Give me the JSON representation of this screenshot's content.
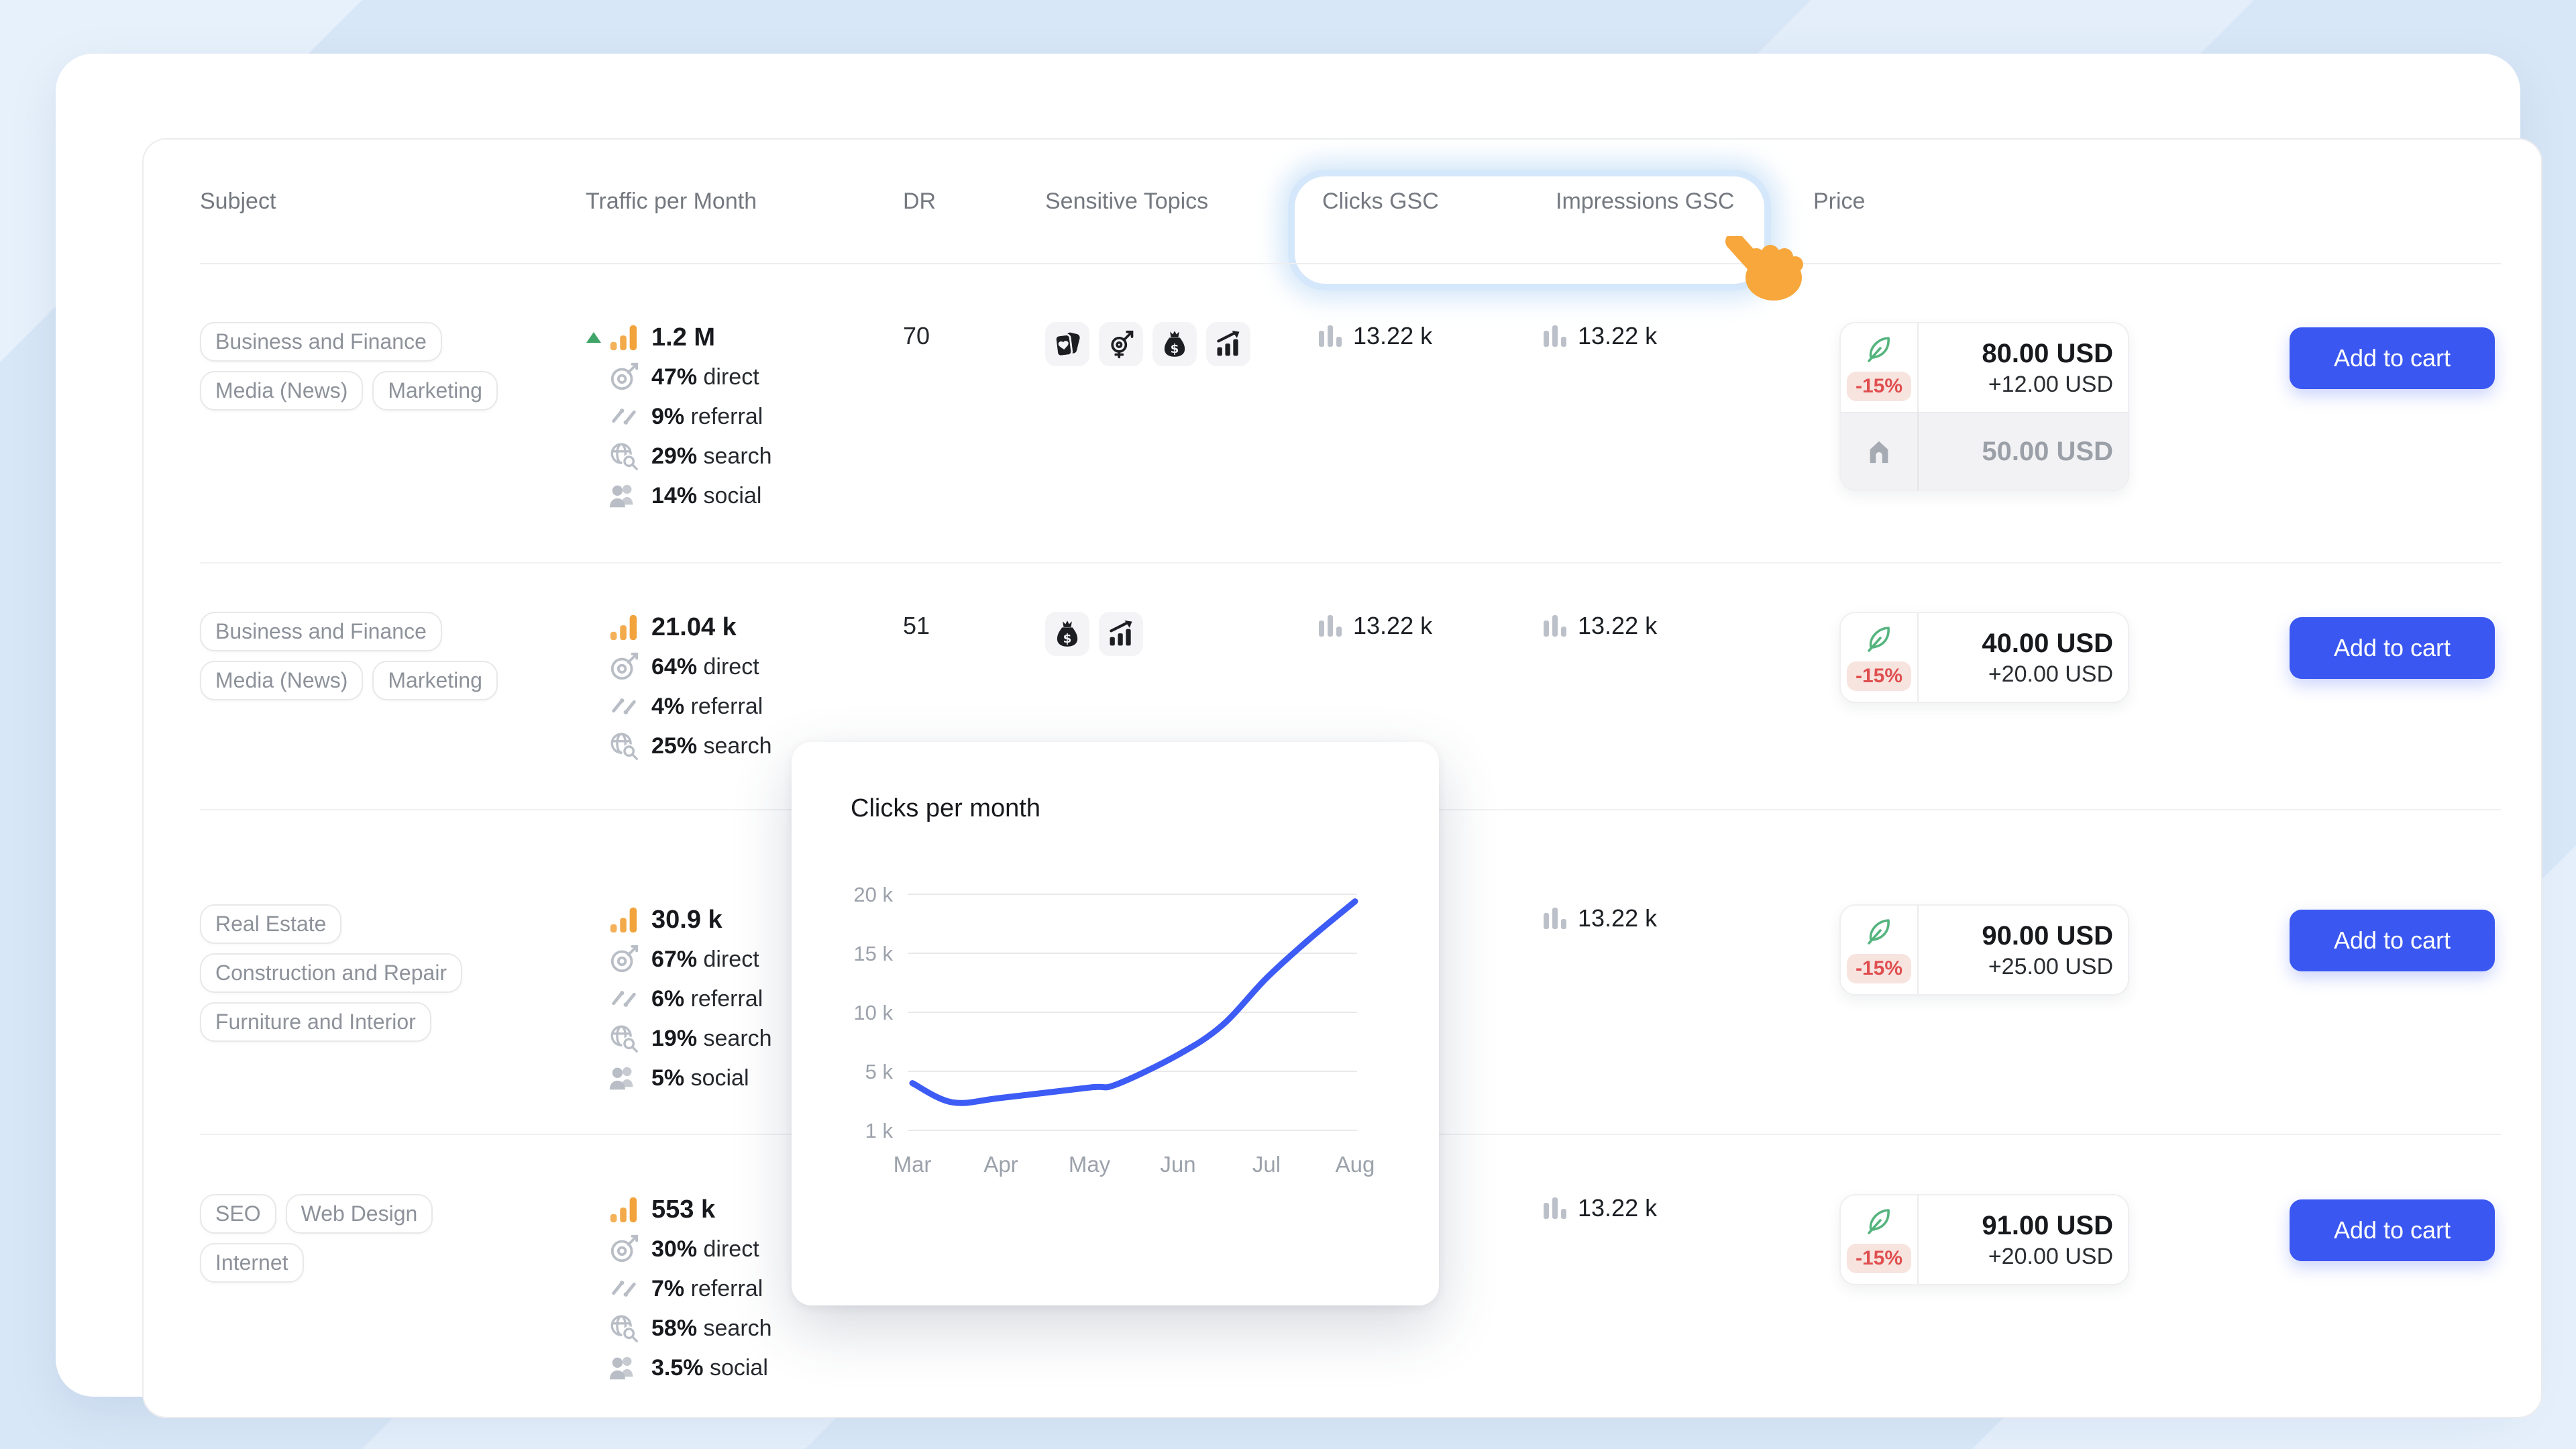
{
  "header": {
    "columns": [
      "Subject",
      "Traffic per Month",
      "DR",
      "Sensitive Topics",
      "Clicks GSC",
      "Impressions GSC",
      "Price"
    ],
    "highlighted_columns": [
      "Clicks GSC",
      "Impressions GSC"
    ]
  },
  "cart_button_label": "Add to cart",
  "rows": [
    {
      "tag_lines": [
        [
          "Business and Finance"
        ],
        [
          "Media (News)",
          "Marketing"
        ]
      ],
      "traffic": {
        "trend_up": true,
        "total": "1.2 M",
        "sources": [
          {
            "icon": "target",
            "value": "47%",
            "label": "direct"
          },
          {
            "icon": "referral-arrows",
            "value": "9%",
            "label": "referral"
          },
          {
            "icon": "globe-search",
            "value": "29%",
            "label": "search"
          },
          {
            "icon": "people",
            "value": "14%",
            "label": "social"
          }
        ]
      },
      "dr": "70",
      "sensitive_icons": [
        "cards-heart",
        "gender",
        "money-bag",
        "chart-up"
      ],
      "clicks_gsc": "13.22 k",
      "impressions_gsc": "13.22 k",
      "price": {
        "discount": "-15%",
        "amount": "80.00 USD",
        "extra": "+12.00 USD",
        "secondary_amount": "50.00 USD"
      }
    },
    {
      "tag_lines": [
        [
          "Business and Finance"
        ],
        [
          "Media (News)",
          "Marketing"
        ]
      ],
      "traffic": {
        "trend_up": false,
        "total": "21.04 k",
        "sources": [
          {
            "icon": "target",
            "value": "64%",
            "label": "direct"
          },
          {
            "icon": "referral-arrows",
            "value": "4%",
            "label": "referral"
          },
          {
            "icon": "globe-search",
            "value": "25%",
            "label": "search"
          }
        ]
      },
      "dr": "51",
      "sensitive_icons": [
        "money-bag",
        "chart-up"
      ],
      "clicks_gsc": "13.22 k",
      "impressions_gsc": "13.22 k",
      "price": {
        "discount": "-15%",
        "amount": "40.00 USD",
        "extra": "+20.00 USD",
        "secondary_amount": ""
      }
    },
    {
      "tag_lines": [
        [
          "Real Estate"
        ],
        [
          "Construction and Repair"
        ],
        [
          "Furniture and Interior"
        ]
      ],
      "traffic": {
        "trend_up": false,
        "total": "30.9 k",
        "sources": [
          {
            "icon": "target",
            "value": "67%",
            "label": "direct"
          },
          {
            "icon": "referral-arrows",
            "value": "6%",
            "label": "referral"
          },
          {
            "icon": "globe-search",
            "value": "19%",
            "label": "search"
          },
          {
            "icon": "people",
            "value": "5%",
            "label": "social"
          }
        ]
      },
      "dr": "",
      "sensitive_icons": [],
      "clicks_gsc": "",
      "impressions_gsc": "13.22 k",
      "price": {
        "discount": "-15%",
        "amount": "90.00 USD",
        "extra": "+25.00 USD",
        "secondary_amount": ""
      }
    },
    {
      "tag_lines": [
        [
          "SEO",
          "Web Design"
        ],
        [
          "Internet"
        ]
      ],
      "traffic": {
        "trend_up": false,
        "total": "553 k",
        "sources": [
          {
            "icon": "target",
            "value": "30%",
            "label": "direct"
          },
          {
            "icon": "referral-arrows",
            "value": "7%",
            "label": "referral"
          },
          {
            "icon": "globe-search",
            "value": "58%",
            "label": "search"
          },
          {
            "icon": "people",
            "value": "3.5%",
            "label": "social"
          }
        ]
      },
      "dr": "",
      "sensitive_icons": [],
      "clicks_gsc": "",
      "impressions_gsc": "13.22 k",
      "price": {
        "discount": "-15%",
        "amount": "91.00 USD",
        "extra": "+20.00 USD",
        "secondary_amount": ""
      }
    }
  ],
  "chart_popup": {
    "title": "Clicks per month"
  },
  "chart_data": {
    "type": "line",
    "title": "Clicks per month",
    "x_labels": [
      "Mar",
      "Apr",
      "May",
      "Jun",
      "Jul",
      "Aug"
    ],
    "y_ticks": [
      "20 k",
      "15 k",
      "10 k",
      "5 k",
      "1 k"
    ],
    "y_tick_values": [
      20000,
      15000,
      10000,
      5000,
      1000
    ],
    "grid": "horizontal",
    "line_color": "#3d5bf5",
    "series": [
      {
        "name": "Clicks",
        "points_month_value": [
          [
            0,
            4200
          ],
          [
            0.45,
            2900
          ],
          [
            1,
            3200
          ],
          [
            2,
            3900
          ],
          [
            2.3,
            4100
          ],
          [
            3,
            6400
          ],
          [
            3.5,
            8900
          ],
          [
            4,
            12900
          ],
          [
            4.5,
            16300
          ],
          [
            5,
            19400
          ]
        ],
        "monthly_values": {
          "Mar": 4200,
          "Apr": 3200,
          "May": 3900,
          "Jun": 6400,
          "Jul": 12900,
          "Aug": 19400
        }
      }
    ]
  },
  "colors": {
    "accent_blue": "#3a57f2",
    "chart_line": "#3d5bf5",
    "traffic_orange": "#f2a33c",
    "trend_green": "#3fa468",
    "discount_red": "#e04f4f",
    "feather_green": "#55b47e",
    "background_blue": "#d8e7f7"
  }
}
